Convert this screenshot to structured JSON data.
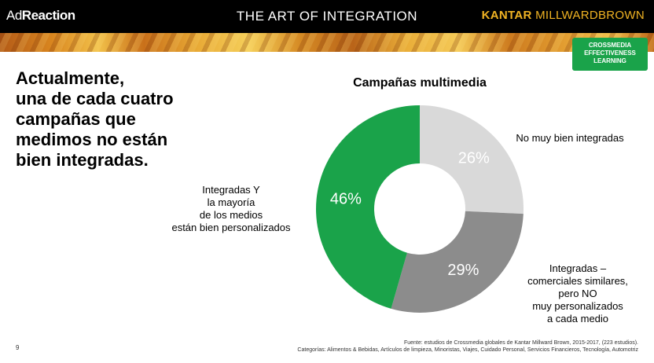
{
  "header": {
    "brand_left_prefix": "Ad",
    "brand_left_suffix": "Reaction",
    "title": "THE ART OF INTEGRATION",
    "brand_right_a": "KANTAR ",
    "brand_right_b": "MILLWARDBROWN"
  },
  "badge": {
    "line1": "CROSSMEDIA",
    "line2": "EFFECTIVENESS",
    "line3": "LEARNING",
    "color": "#1aa34a"
  },
  "headline": {
    "line1": "Actualmente,",
    "line2": "una de cada cuatro",
    "line3": "campañas que",
    "line4": "medimos no están",
    "line5": "bien integradas."
  },
  "chart_data": {
    "type": "pie",
    "title": "Campañas multimedia",
    "slices": [
      {
        "label": "No muy bien integradas",
        "value": 26,
        "display": "26%",
        "color": "#d9d9d9"
      },
      {
        "label": "Integradas – comerciales similares, pero NO muy personalizados a cada medio",
        "value": 29,
        "display": "29%",
        "color": "#8c8c8c"
      },
      {
        "label": "Integradas Y la mayoría de los medios están bien personalizados",
        "value": 46,
        "display": "46%",
        "color": "#1aa34a"
      }
    ]
  },
  "labels": {
    "slice1": {
      "line1": "No muy bien integradas"
    },
    "slice2": {
      "line1": "Integradas –",
      "line2": "comerciales similares,",
      "line3": "pero NO",
      "line4": "muy personalizados",
      "line5": "a cada medio"
    },
    "slice3": {
      "line1": "Integradas Y",
      "line2": "la mayoría",
      "line3": "de los medios",
      "line4": "están bien personalizados"
    }
  },
  "footer": {
    "source": "Fuente: estudios de Crossmedia globales de  Kantar Millward Brown, 2015-2017, (223 estudios).",
    "categories": "Categorías: Alimentos & Bebidas, Artículos de limpieza, Minoristas, Viajes, Cuidado Personal, Servicios Financieros, Tecnología, Automotriz"
  },
  "page_number": "9"
}
